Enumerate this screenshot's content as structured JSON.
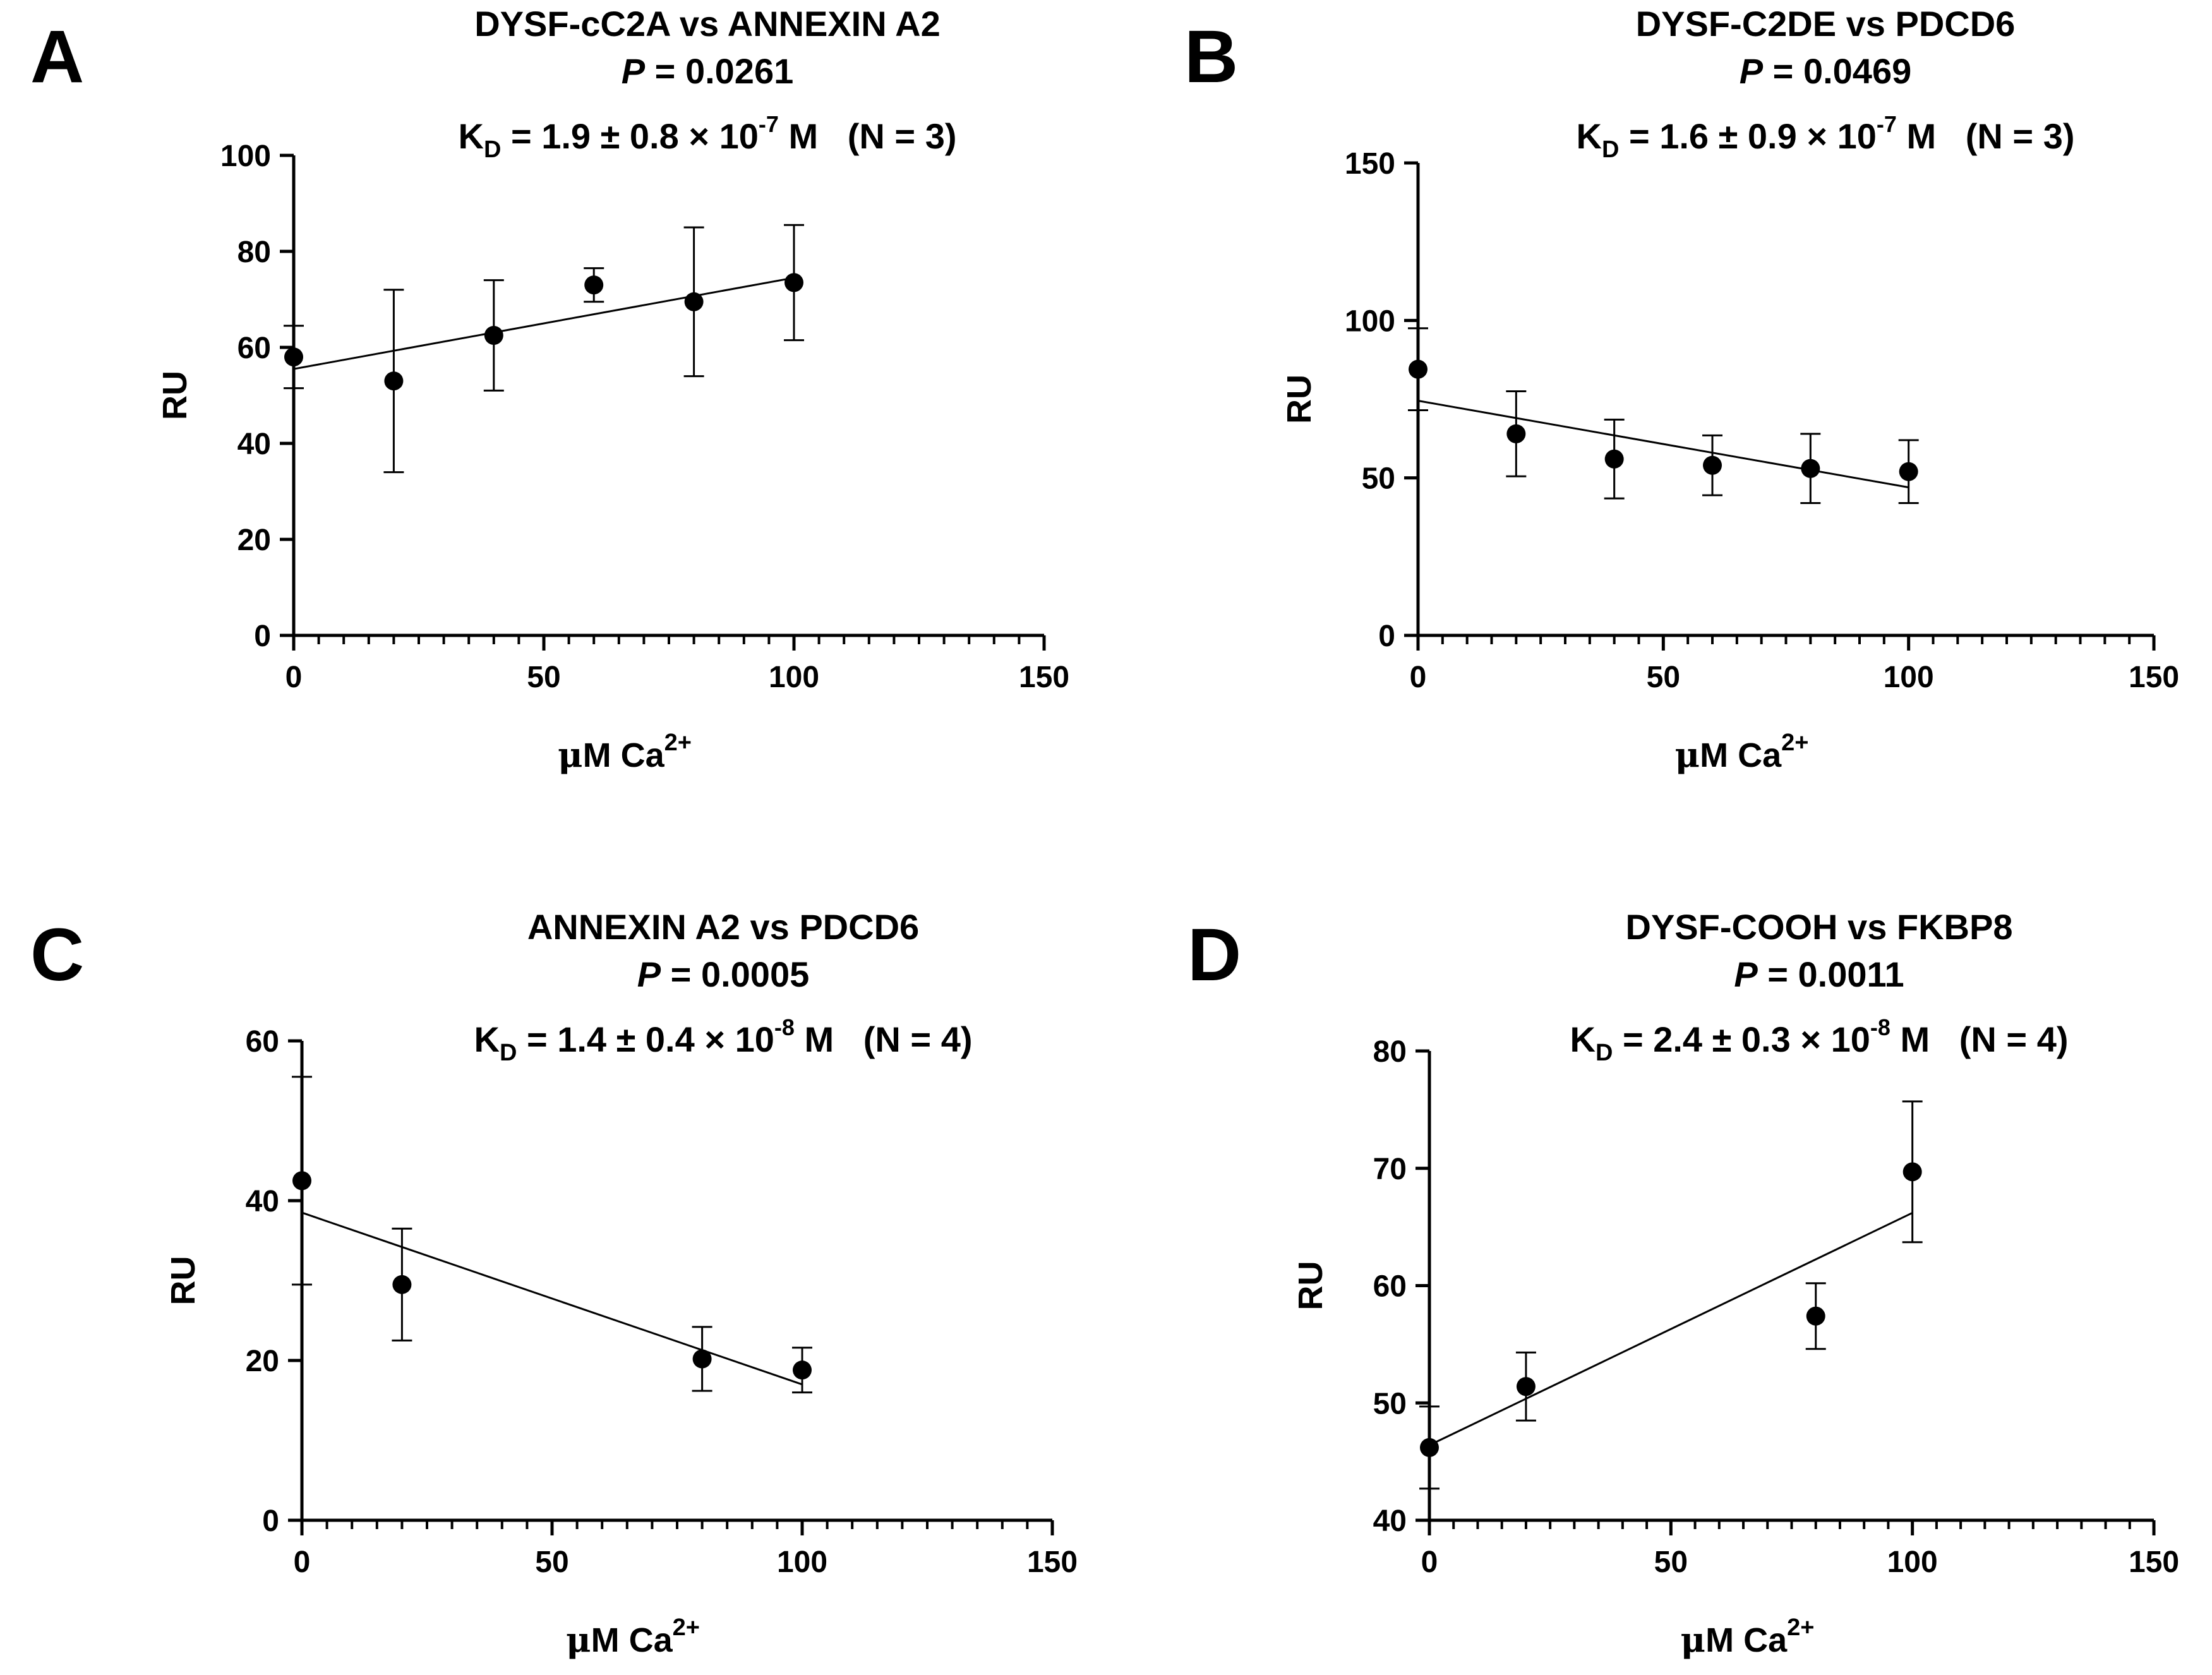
{
  "figure": {
    "panels": [
      {
        "letter": "A",
        "title": "DYSF-cC2A vs ANNEXIN A2",
        "p_prefix": "P",
        "p_suffix": " = 0.0261",
        "kd": {
          "prefix": "K",
          "sub": "D",
          "text": " = 1.9 ± 0.8 × 10",
          "exp": "-7",
          "unit": " M",
          "n_label": "(N = 3)"
        }
      },
      {
        "letter": "B",
        "title": "DYSF-C2DE vs PDCD6",
        "p_prefix": "P",
        "p_suffix": " = 0.0469",
        "kd": {
          "prefix": "K",
          "sub": "D",
          "text": " = 1.6 ± 0.9 × 10",
          "exp": "-7",
          "unit": " M",
          "n_label": "(N = 3)"
        }
      },
      {
        "letter": "C",
        "title": "ANNEXIN A2 vs PDCD6",
        "p_prefix": "P",
        "p_suffix": " = 0.0005",
        "kd": {
          "prefix": "K",
          "sub": "D",
          "text": " = 1.4 ± 0.4 × 10",
          "exp": "-8",
          "unit": " M",
          "n_label": "(N = 4)"
        }
      },
      {
        "letter": "D",
        "title": "DYSF-COOH vs FKBP8",
        "p_prefix": "P",
        "p_suffix": " = 0.0011",
        "kd": {
          "prefix": "K",
          "sub": "D",
          "text": " = 2.4 ± 0.3 × 10",
          "exp": "-8",
          "unit": " M",
          "n_label": "(N = 4)"
        }
      }
    ]
  },
  "chart_data": [
    {
      "type": "scatter",
      "title": "DYSF-cC2A vs ANNEXIN A2",
      "xlabel": {
        "mu": "μ",
        "text": "M Ca",
        "sup": "2+"
      },
      "ylabel": "RU",
      "xlim": [
        0,
        150
      ],
      "ylim": [
        0,
        100
      ],
      "x_ticks": [
        0,
        50,
        100,
        150
      ],
      "y_ticks": [
        0,
        20,
        40,
        60,
        80,
        100
      ],
      "x_minor_step": 5,
      "points": [
        {
          "x": 0,
          "y": 58,
          "err": 6.5
        },
        {
          "x": 20,
          "y": 53,
          "err": 19
        },
        {
          "x": 40,
          "y": 62.5,
          "err": 11.5
        },
        {
          "x": 60,
          "y": 73,
          "err": 3.5
        },
        {
          "x": 80,
          "y": 69.5,
          "err": 15.5
        },
        {
          "x": 100,
          "y": 73.5,
          "err": 12
        }
      ],
      "fit": {
        "x0": 0,
        "y0": 55.5,
        "x1": 100,
        "y1": 74.5
      }
    },
    {
      "type": "scatter",
      "title": "DYSF-C2DE vs PDCD6",
      "xlabel": {
        "mu": "μ",
        "text": "M Ca",
        "sup": "2+"
      },
      "ylabel": "RU",
      "xlim": [
        0,
        150
      ],
      "ylim": [
        0,
        150
      ],
      "x_ticks": [
        0,
        50,
        100,
        150
      ],
      "y_ticks": [
        0,
        50,
        100,
        150
      ],
      "x_minor_step": 5,
      "points": [
        {
          "x": 0,
          "y": 84.5,
          "err": 13
        },
        {
          "x": 20,
          "y": 64,
          "err": 13.5
        },
        {
          "x": 40,
          "y": 56,
          "err": 12.5
        },
        {
          "x": 60,
          "y": 54,
          "err": 9.5
        },
        {
          "x": 80,
          "y": 53,
          "err": 11
        },
        {
          "x": 100,
          "y": 52,
          "err": 10
        }
      ],
      "fit": {
        "x0": 0,
        "y0": 74.5,
        "x1": 100,
        "y1": 47
      }
    },
    {
      "type": "scatter",
      "title": "ANNEXIN A2 vs PDCD6",
      "xlabel": {
        "mu": "μ",
        "text": "M Ca",
        "sup": "2+"
      },
      "ylabel": "RU",
      "xlim": [
        0,
        150
      ],
      "ylim": [
        0,
        60
      ],
      "x_ticks": [
        0,
        50,
        100,
        150
      ],
      "y_ticks": [
        0,
        20,
        40,
        60
      ],
      "x_minor_step": 5,
      "points": [
        {
          "x": 0,
          "y": 42.5,
          "err": 13
        },
        {
          "x": 20,
          "y": 29.5,
          "err": 7
        },
        {
          "x": 80,
          "y": 20.2,
          "err": 4
        },
        {
          "x": 100,
          "y": 18.8,
          "err": 2.8
        }
      ],
      "fit": {
        "x0": 0,
        "y0": 38.5,
        "x1": 100,
        "y1": 17
      }
    },
    {
      "type": "scatter",
      "title": "DYSF-COOH vs FKBP8",
      "xlabel": {
        "mu": "μ",
        "text": "M Ca",
        "sup": "2+"
      },
      "ylabel": "RU",
      "xlim": [
        0,
        150
      ],
      "ylim": [
        40,
        80
      ],
      "x_ticks": [
        0,
        50,
        100,
        150
      ],
      "y_ticks": [
        40,
        50,
        60,
        70,
        80
      ],
      "x_minor_step": 5,
      "points": [
        {
          "x": 0,
          "y": 46.2,
          "err": 3.5
        },
        {
          "x": 20,
          "y": 51.4,
          "err": 2.9
        },
        {
          "x": 80,
          "y": 57.4,
          "err": 2.8
        },
        {
          "x": 100,
          "y": 69.7,
          "err": 6
        }
      ],
      "fit": {
        "x0": 0,
        "y0": 46.4,
        "x1": 100,
        "y1": 66.2
      }
    }
  ]
}
